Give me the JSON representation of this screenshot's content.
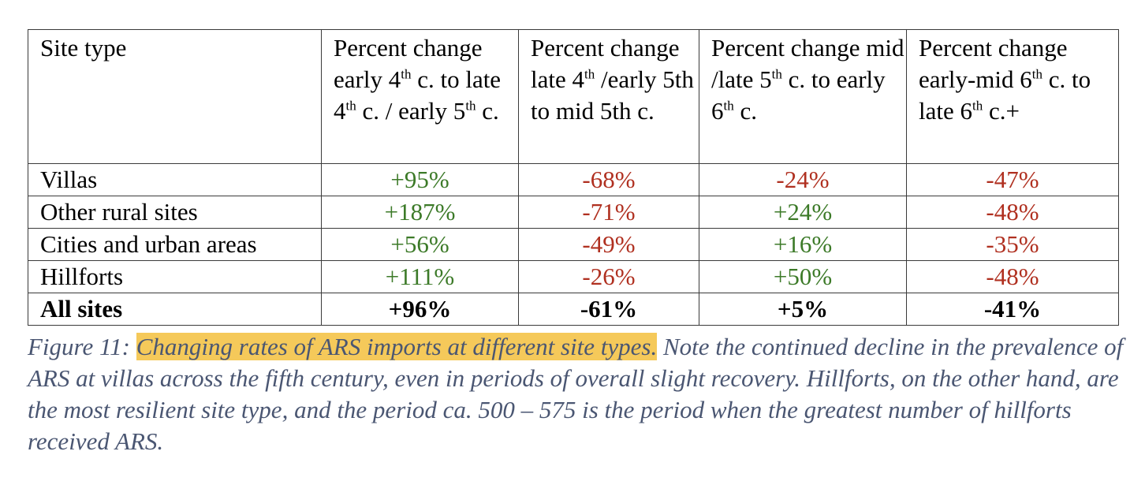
{
  "table": {
    "headers": [
      {
        "parts": [
          "Site type"
        ]
      },
      {
        "parts": [
          "Percent change early 4",
          "th",
          " c. to late 4",
          "th",
          " c. / early 5",
          "th",
          " c."
        ]
      },
      {
        "parts": [
          "Percent change late 4",
          "th",
          " /early 5th to mid 5th c."
        ]
      },
      {
        "parts": [
          "Percent change mid /late 5",
          "th",
          " c. to early 6",
          "th",
          " c."
        ]
      },
      {
        "parts": [
          "Percent change early-mid 6",
          "th",
          " c. to late 6",
          "th",
          " c.+"
        ]
      }
    ],
    "rows": [
      {
        "site": "Villas",
        "values": [
          "+95%",
          "-68%",
          "-24%",
          "-47%"
        ]
      },
      {
        "site": "Other rural sites",
        "values": [
          "+187%",
          "-71%",
          "+24%",
          "-48%"
        ]
      },
      {
        "site": "Cities and urban areas",
        "values": [
          "+56%",
          "-49%",
          "+16%",
          "-35%"
        ]
      },
      {
        "site": "Hillforts",
        "values": [
          "+111%",
          "-26%",
          "+50%",
          "-48%"
        ]
      }
    ],
    "total": {
      "site": "All sites",
      "values": [
        "+96%",
        "-61%",
        "+5%",
        "-41%"
      ]
    }
  },
  "caption": {
    "label": "Figure 11: ",
    "highlight": "Changing rates of ARS imports at different site types.",
    "text": " Note the continued decline in the prevalence of ARS at villas across the fifth century, even in periods of overall slight recovery. Hillforts, on the other hand, are the most resilient site type, and the period ca. 500 – 575 is the period when the greatest number of hillforts received ARS."
  },
  "colors": {
    "positive": "#3c7a28",
    "negative": "#b03020",
    "caption": "#4a5672",
    "highlight": "#f5c95a"
  }
}
